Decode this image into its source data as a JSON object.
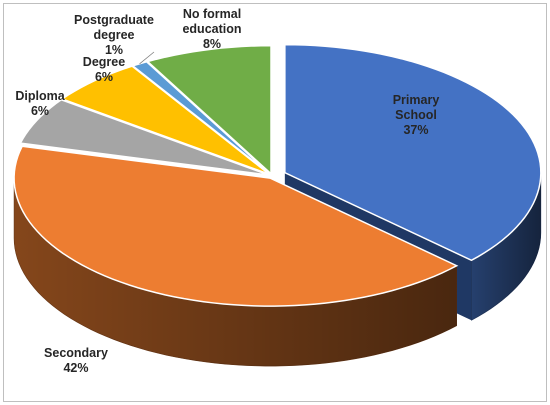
{
  "chart_data": {
    "type": "pie",
    "style": "3d-exploded",
    "title": "",
    "legend": "none",
    "slices": [
      {
        "name": "Primary School",
        "label_lines": [
          "Primary",
          "School"
        ],
        "value": 37,
        "label": "37%",
        "color": "#4472c4"
      },
      {
        "name": "Secondary",
        "label_lines": [
          "Secondary"
        ],
        "value": 42,
        "label": "42%",
        "color": "#ed7d31"
      },
      {
        "name": "Diploma",
        "label_lines": [
          "Diploma"
        ],
        "value": 6,
        "label": "6%",
        "color": "#a5a5a5"
      },
      {
        "name": "Degree",
        "label_lines": [
          "Degree"
        ],
        "value": 6,
        "label": "6%",
        "color": "#ffc000"
      },
      {
        "name": "Postgraduate degree",
        "label_lines": [
          "Postgraduate",
          "degree"
        ],
        "value": 1,
        "label": "1%",
        "color": "#5b9bd5"
      },
      {
        "name": "No formal education",
        "label_lines": [
          "No formal",
          "education"
        ],
        "value": 8,
        "label": "8%",
        "color": "#70ad47"
      }
    ]
  }
}
